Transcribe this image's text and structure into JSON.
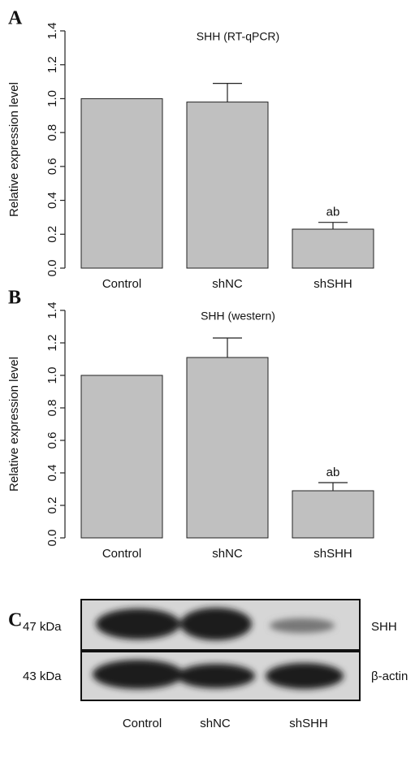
{
  "chart_data": [
    {
      "type": "bar",
      "panel_label": "A",
      "title": "SHH (RT-qPCR)",
      "ylabel": "Relative expression level",
      "categories": [
        "Control",
        "shNC",
        "shSHH"
      ],
      "values": [
        1.0,
        0.98,
        0.23
      ],
      "errors": [
        null,
        0.11,
        0.04
      ],
      "annotations": [
        null,
        null,
        "ab"
      ],
      "color": "#c0c0c0",
      "ylim": [
        0,
        1.4
      ],
      "yticks": [
        {
          "value": 0,
          "label": "0.0"
        },
        0.2,
        0.4,
        0.6,
        0.8,
        {
          "value": 1,
          "label": "1.0"
        },
        1.2,
        1.4
      ]
    },
    {
      "type": "bar",
      "panel_label": "B",
      "title": "SHH (western)",
      "ylabel": "Relative expression level",
      "categories": [
        "Control",
        "shNC",
        "shSHH"
      ],
      "values": [
        1.0,
        1.11,
        0.29
      ],
      "errors": [
        null,
        0.12,
        0.05
      ],
      "annotations": [
        null,
        null,
        "ab"
      ],
      "color": "#c0c0c0",
      "ylim": [
        0,
        1.4
      ],
      "yticks": [
        {
          "value": 0,
          "label": "0.0"
        },
        0.2,
        0.4,
        0.6,
        0.8,
        {
          "value": 1,
          "label": "1.0"
        },
        1.2,
        1.4
      ]
    }
  ],
  "blot": {
    "panel_label": "C",
    "rows": [
      {
        "marker": "47 kDa",
        "protein": "SHH"
      },
      {
        "marker": "43 kDa",
        "protein": "β-actin"
      }
    ],
    "lanes": [
      "Control",
      "shNC",
      "shSHH"
    ]
  }
}
